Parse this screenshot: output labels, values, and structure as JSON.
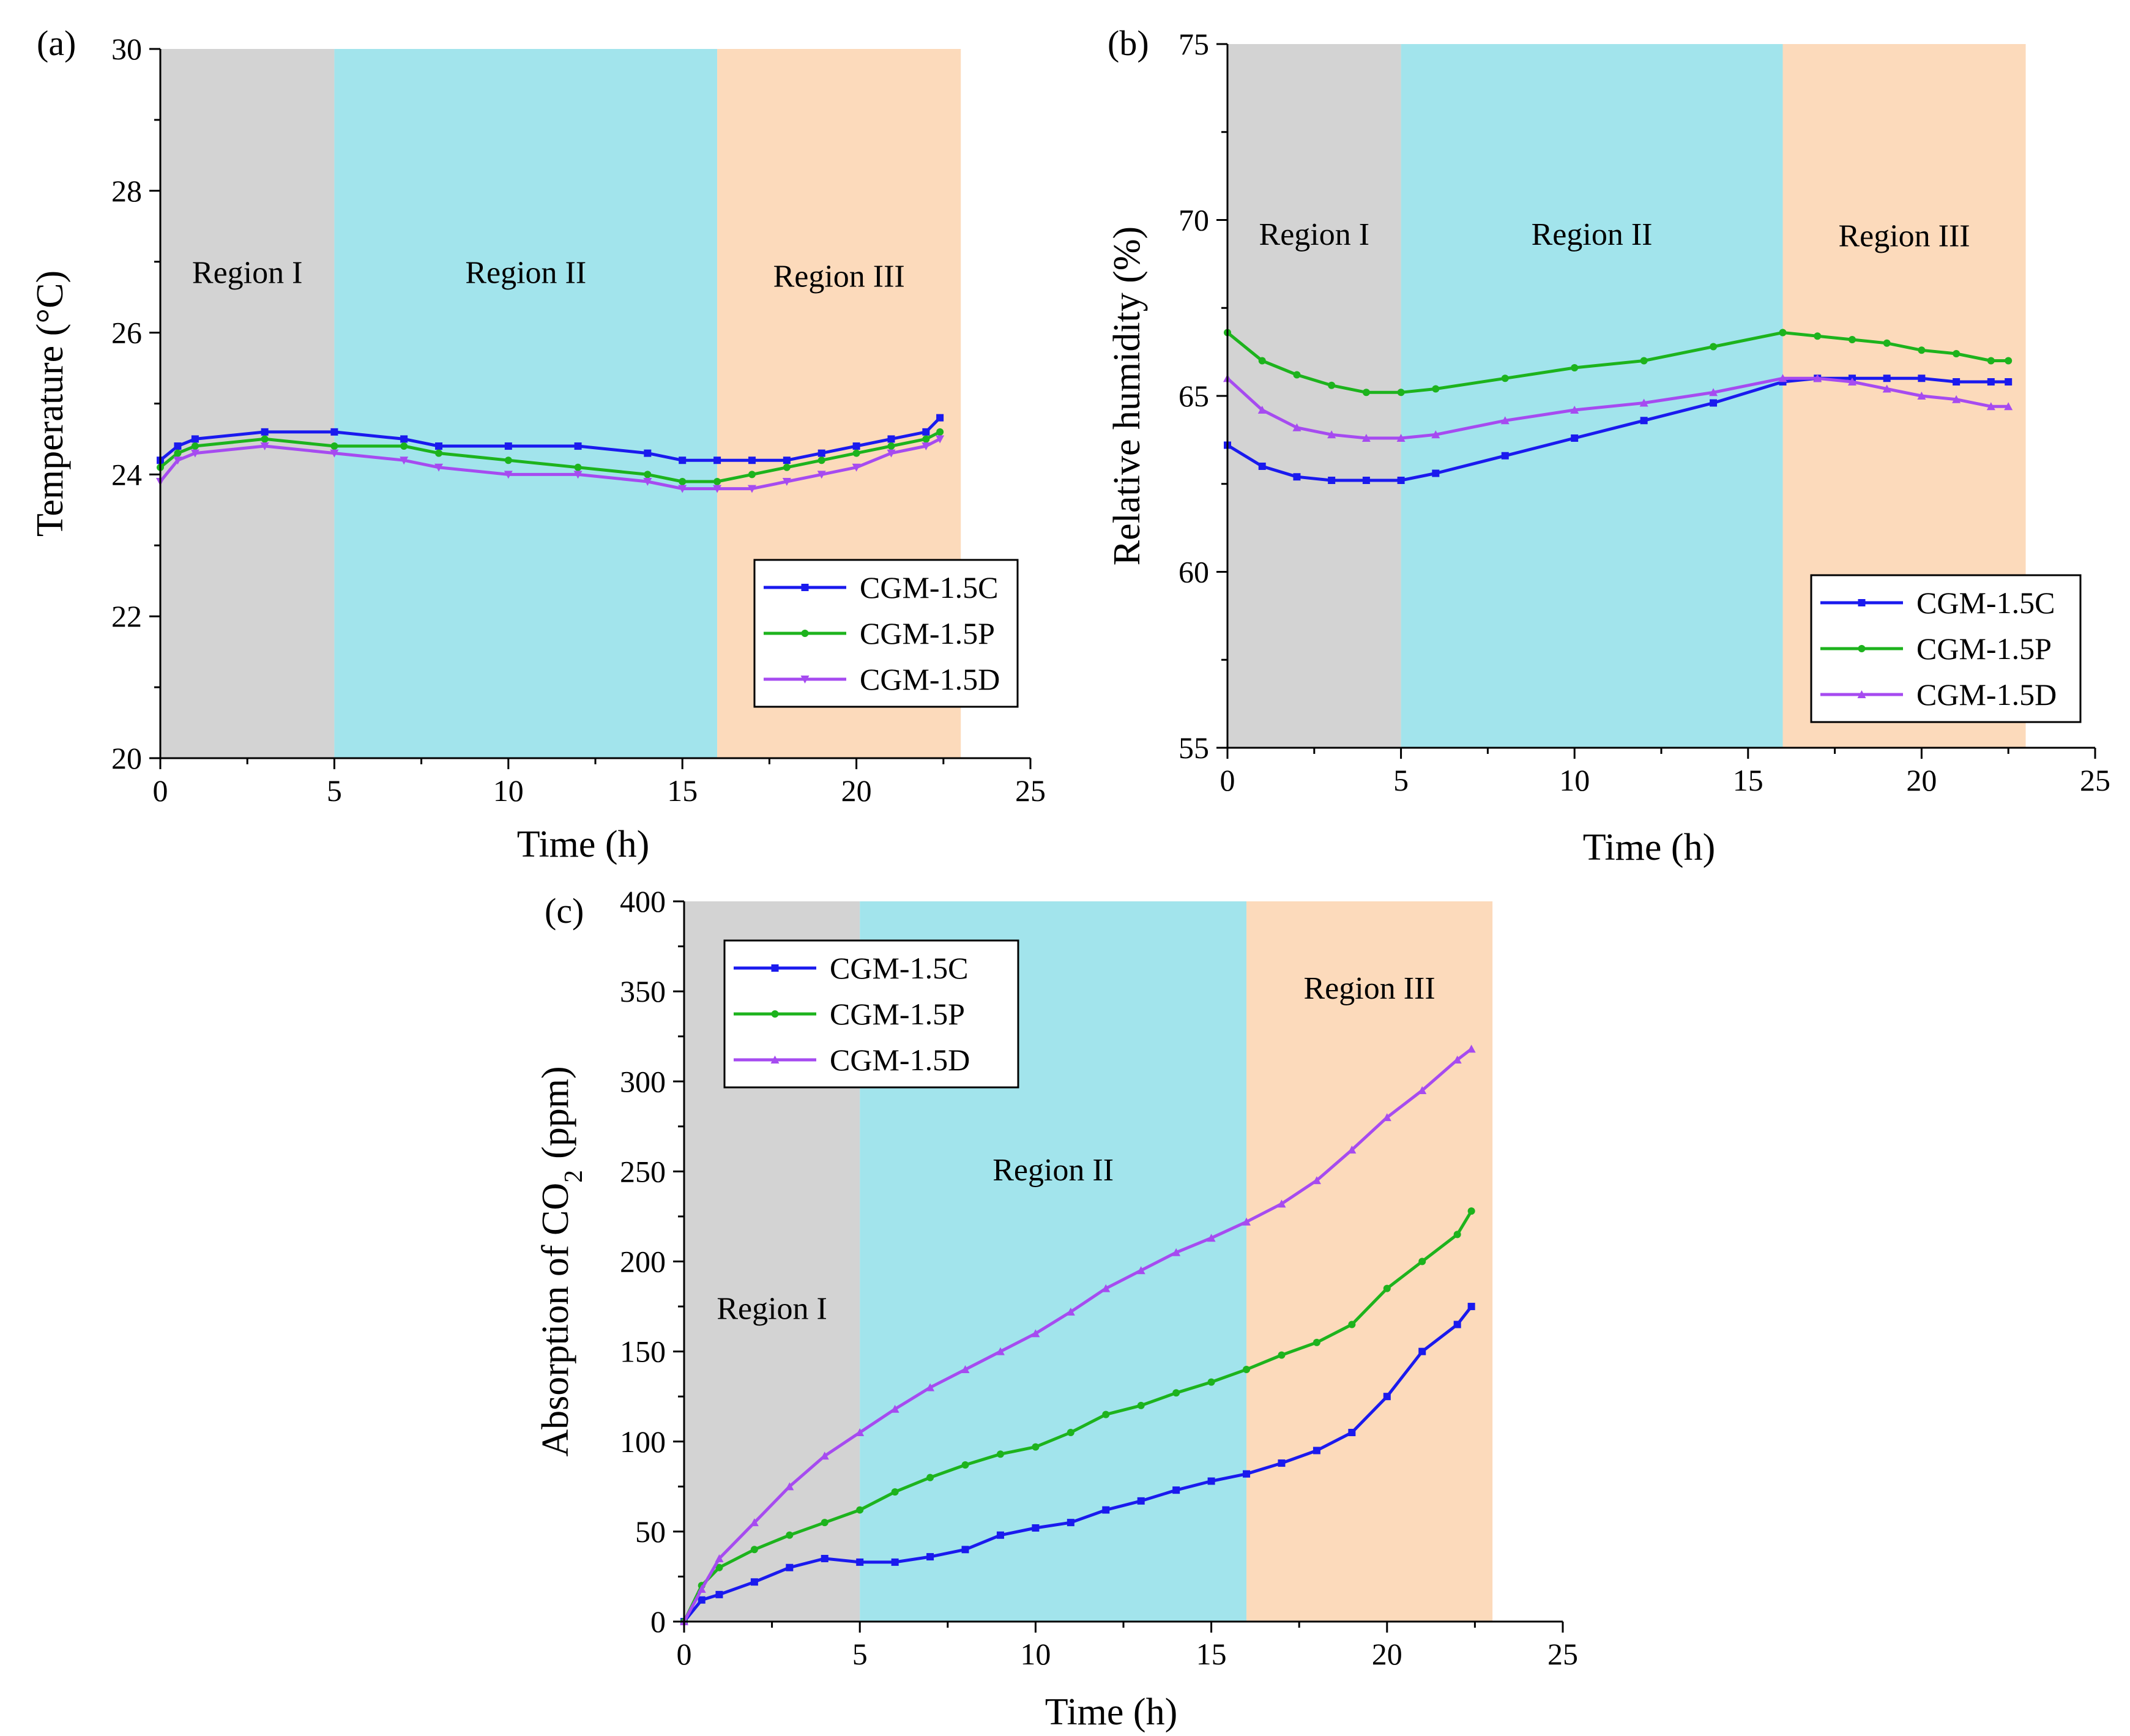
{
  "figure": {
    "panels": [
      "(a)",
      "(b)",
      "(c)"
    ]
  },
  "chart_data": [
    {
      "panel": "(a)",
      "type": "line",
      "xlabel": "Time (h)",
      "ylabel": "Temperature (°C)",
      "xlim": [
        0,
        25
      ],
      "ylim": [
        20,
        30
      ],
      "xticks": [
        0,
        5,
        10,
        15,
        20,
        25
      ],
      "yticks": [
        20,
        22,
        24,
        26,
        28,
        30
      ],
      "regions": [
        {
          "label": "Region I",
          "x0": 0,
          "x1": 5,
          "color": "#d3d3d3",
          "label_y": 26.7
        },
        {
          "label": "Region II",
          "x0": 5,
          "x1": 16,
          "color": "#a2e4ec",
          "label_y": 26.7
        },
        {
          "label": "Region III",
          "x0": 16,
          "x1": 23,
          "color": "#fcdabb",
          "label_y": 26.65
        }
      ],
      "legend": {
        "position": "right",
        "entries": [
          "CGM-1.5C",
          "CGM-1.5P",
          "CGM-1.5D"
        ]
      },
      "series": [
        {
          "name": "CGM-1.5C",
          "color": "#1a1aee",
          "marker": "square",
          "x": [
            0,
            0.5,
            1,
            3,
            5,
            7,
            8,
            10,
            12,
            14,
            15,
            16,
            17,
            18,
            19,
            20,
            21,
            22,
            22.4
          ],
          "y": [
            24.2,
            24.4,
            24.5,
            24.6,
            24.6,
            24.5,
            24.4,
            24.4,
            24.4,
            24.3,
            24.2,
            24.2,
            24.2,
            24.2,
            24.3,
            24.4,
            24.5,
            24.6,
            24.8
          ]
        },
        {
          "name": "CGM-1.5P",
          "color": "#1db31d",
          "marker": "circle",
          "x": [
            0,
            0.5,
            1,
            3,
            5,
            7,
            8,
            10,
            12,
            14,
            15,
            16,
            17,
            18,
            19,
            20,
            21,
            22,
            22.4
          ],
          "y": [
            24.1,
            24.3,
            24.4,
            24.5,
            24.4,
            24.4,
            24.3,
            24.2,
            24.1,
            24.0,
            23.9,
            23.9,
            24.0,
            24.1,
            24.2,
            24.3,
            24.4,
            24.5,
            24.6
          ]
        },
        {
          "name": "CGM-1.5D",
          "color": "#a64bf0",
          "marker": "triangle-down",
          "x": [
            0,
            0.5,
            1,
            3,
            5,
            7,
            8,
            10,
            12,
            14,
            15,
            16,
            17,
            18,
            19,
            20,
            21,
            22,
            22.4
          ],
          "y": [
            23.9,
            24.2,
            24.3,
            24.4,
            24.3,
            24.2,
            24.1,
            24.0,
            24.0,
            23.9,
            23.8,
            23.8,
            23.8,
            23.9,
            24.0,
            24.1,
            24.3,
            24.4,
            24.5
          ]
        }
      ]
    },
    {
      "panel": "(b)",
      "type": "line",
      "xlabel": "Time (h)",
      "ylabel": "Relative humidity (%)",
      "xlim": [
        0,
        25
      ],
      "ylim": [
        55,
        75
      ],
      "xticks": [
        0,
        5,
        10,
        15,
        20,
        25
      ],
      "yticks": [
        55,
        60,
        65,
        70,
        75
      ],
      "regions": [
        {
          "label": "Region I",
          "x0": 0,
          "x1": 5,
          "color": "#d3d3d3",
          "label_y": 69.3
        },
        {
          "label": "Region II",
          "x0": 5,
          "x1": 16,
          "color": "#a2e4ec",
          "label_y": 69.3
        },
        {
          "label": "Region III",
          "x0": 16,
          "x1": 23,
          "color": "#fcdabb",
          "label_y": 69.25
        }
      ],
      "legend": {
        "position": "bottom-right",
        "entries": [
          "CGM-1.5C",
          "CGM-1.5P",
          "CGM-1.5D"
        ]
      },
      "series": [
        {
          "name": "CGM-1.5C",
          "color": "#1a1aee",
          "marker": "square",
          "x": [
            0,
            1,
            2,
            3,
            4,
            5,
            6,
            8,
            10,
            12,
            14,
            16,
            17,
            18,
            19,
            20,
            21,
            22,
            22.5
          ],
          "y": [
            63.6,
            63.0,
            62.7,
            62.6,
            62.6,
            62.6,
            62.8,
            63.3,
            63.8,
            64.3,
            64.8,
            65.4,
            65.5,
            65.5,
            65.5,
            65.5,
            65.4,
            65.4,
            65.4
          ]
        },
        {
          "name": "CGM-1.5P",
          "color": "#1db31d",
          "marker": "circle",
          "x": [
            0,
            1,
            2,
            3,
            4,
            5,
            6,
            8,
            10,
            12,
            14,
            16,
            17,
            18,
            19,
            20,
            21,
            22,
            22.5
          ],
          "y": [
            66.8,
            66.0,
            65.6,
            65.3,
            65.1,
            65.1,
            65.2,
            65.5,
            65.8,
            66.0,
            66.4,
            66.8,
            66.7,
            66.6,
            66.5,
            66.3,
            66.2,
            66.0,
            66.0
          ]
        },
        {
          "name": "CGM-1.5D",
          "color": "#a64bf0",
          "marker": "triangle",
          "x": [
            0,
            1,
            2,
            3,
            4,
            5,
            6,
            8,
            10,
            12,
            14,
            16,
            17,
            18,
            19,
            20,
            21,
            22,
            22.5
          ],
          "y": [
            65.5,
            64.6,
            64.1,
            63.9,
            63.8,
            63.8,
            63.9,
            64.3,
            64.6,
            64.8,
            65.1,
            65.5,
            65.5,
            65.4,
            65.2,
            65.0,
            64.9,
            64.7,
            64.7
          ]
        }
      ]
    },
    {
      "panel": "(c)",
      "type": "line",
      "xlabel": "Time (h)",
      "ylabel": "Absorption of CO",
      "ylabel_subscript": "2",
      "ylabel_suffix": "(ppm)",
      "xlim": [
        0,
        25
      ],
      "ylim": [
        0,
        400
      ],
      "xticks": [
        0,
        5,
        10,
        15,
        20,
        25
      ],
      "yticks": [
        0,
        50,
        100,
        150,
        200,
        250,
        300,
        350,
        400
      ],
      "regions": [
        {
          "label": "Region I",
          "x0": 0,
          "x1": 5,
          "color": "#d3d3d3",
          "label_y": 168
        },
        {
          "label": "Region II",
          "x0": 5,
          "x1": 16,
          "color": "#a2e4ec",
          "label_y": 245
        },
        {
          "label": "Region III",
          "x0": 16,
          "x1": 23,
          "color": "#fcdabb",
          "label_y": 346
        }
      ],
      "legend": {
        "position": "top-left",
        "entries": [
          "CGM-1.5C",
          "CGM-1.5P",
          "CGM-1.5D"
        ]
      },
      "series": [
        {
          "name": "CGM-1.5C",
          "color": "#1a1aee",
          "marker": "square",
          "x": [
            0,
            0.5,
            1,
            2,
            3,
            4,
            5,
            6,
            7,
            8,
            9,
            10,
            11,
            12,
            13,
            14,
            15,
            16,
            17,
            18,
            19,
            20,
            21,
            22,
            22.4
          ],
          "y": [
            0,
            12,
            15,
            22,
            30,
            35,
            33,
            33,
            36,
            40,
            48,
            52,
            55,
            62,
            67,
            73,
            78,
            82,
            88,
            95,
            105,
            125,
            150,
            165,
            175
          ]
        },
        {
          "name": "CGM-1.5P",
          "color": "#1db31d",
          "marker": "circle",
          "x": [
            0,
            0.5,
            1,
            2,
            3,
            4,
            5,
            6,
            7,
            8,
            9,
            10,
            11,
            12,
            13,
            14,
            15,
            16,
            17,
            18,
            19,
            20,
            21,
            22,
            22.4
          ],
          "y": [
            0,
            20,
            30,
            40,
            48,
            55,
            62,
            72,
            80,
            87,
            93,
            97,
            105,
            115,
            120,
            127,
            133,
            140,
            148,
            155,
            165,
            185,
            200,
            215,
            228
          ]
        },
        {
          "name": "CGM-1.5D",
          "color": "#a64bf0",
          "marker": "triangle",
          "x": [
            0,
            0.5,
            1,
            2,
            3,
            4,
            5,
            6,
            7,
            8,
            9,
            10,
            11,
            12,
            13,
            14,
            15,
            16,
            17,
            18,
            19,
            20,
            21,
            22,
            22.4
          ],
          "y": [
            0,
            18,
            35,
            55,
            75,
            92,
            105,
            118,
            130,
            140,
            150,
            160,
            172,
            185,
            195,
            205,
            213,
            222,
            232,
            245,
            262,
            280,
            295,
            312,
            318
          ]
        }
      ]
    }
  ]
}
